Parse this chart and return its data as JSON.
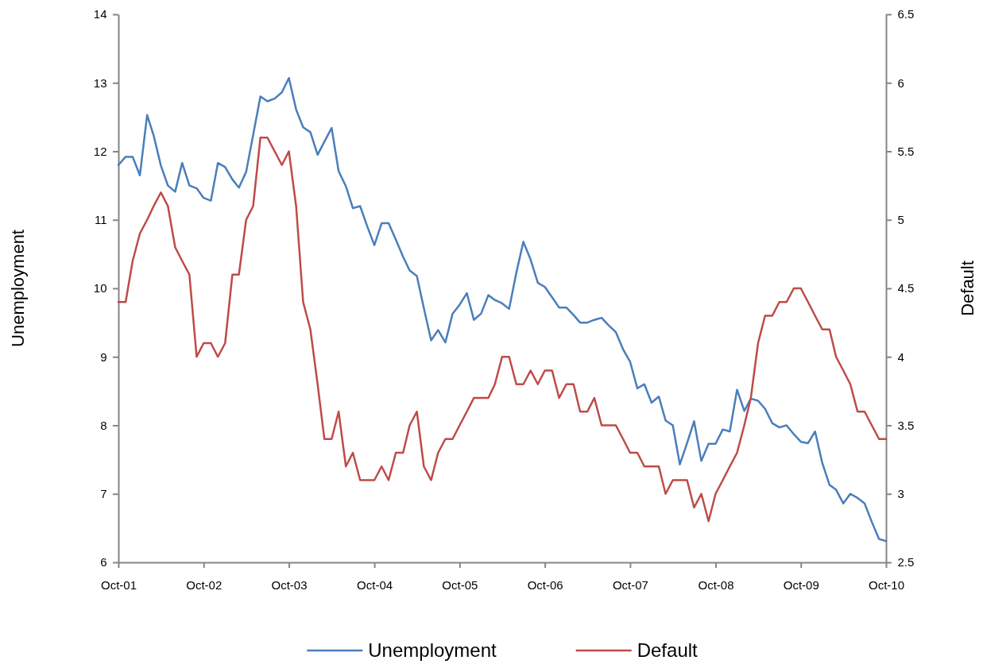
{
  "chart_data": {
    "type": "line",
    "xlabel": null,
    "ylabel": "Unemployment",
    "y2label": "Default",
    "x": [
      "2001-10",
      "2001-11",
      "2001-12",
      "2002-01",
      "2002-02",
      "2002-03",
      "2002-04",
      "2002-05",
      "2002-06",
      "2002-07",
      "2002-08",
      "2002-09",
      "2002-10",
      "2002-11",
      "2002-12",
      "2003-01",
      "2003-02",
      "2003-03",
      "2003-04",
      "2003-05",
      "2003-06",
      "2003-07",
      "2003-08",
      "2003-09",
      "2003-10",
      "2003-11",
      "2003-12",
      "2004-01",
      "2004-02",
      "2004-03",
      "2004-04",
      "2004-05",
      "2004-06",
      "2004-07",
      "2004-08",
      "2004-09",
      "2004-10",
      "2004-11",
      "2004-12",
      "2005-01",
      "2005-02",
      "2005-03",
      "2005-04",
      "2005-05",
      "2005-06",
      "2005-07",
      "2005-08",
      "2005-09",
      "2005-10",
      "2005-11",
      "2005-12",
      "2006-01",
      "2006-02",
      "2006-03",
      "2006-04",
      "2006-05",
      "2006-06",
      "2006-07",
      "2006-08",
      "2006-09",
      "2006-10",
      "2006-11",
      "2006-12",
      "2007-01",
      "2007-02",
      "2007-03",
      "2007-04",
      "2007-05",
      "2007-06",
      "2007-07",
      "2007-08",
      "2007-09",
      "2007-10",
      "2007-11",
      "2007-12",
      "2008-01",
      "2008-02",
      "2008-03",
      "2008-04",
      "2008-05",
      "2008-06",
      "2008-07",
      "2008-08",
      "2008-09",
      "2008-10",
      "2008-11",
      "2008-12",
      "2009-01",
      "2009-02",
      "2009-03",
      "2009-04",
      "2009-05",
      "2009-06",
      "2009-07",
      "2009-08",
      "2009-09",
      "2009-10",
      "2009-11",
      "2009-12",
      "2010-01",
      "2010-02",
      "2010-03",
      "2010-04",
      "2010-05",
      "2010-06",
      "2010-07",
      "2010-08",
      "2010-09",
      "2010-10"
    ],
    "series": [
      {
        "name": "Unemployment",
        "color": "#4a7ebb",
        "values": [
          11.8,
          11.92,
          11.92,
          11.65,
          12.53,
          12.23,
          11.79,
          11.5,
          11.41,
          11.83,
          11.5,
          11.46,
          11.32,
          11.28,
          11.83,
          11.77,
          11.59,
          11.47,
          11.7,
          12.24,
          12.8,
          12.73,
          12.77,
          12.86,
          13.07,
          12.61,
          12.35,
          12.28,
          11.95,
          12.14,
          12.34,
          11.71,
          11.49,
          11.17,
          11.2,
          10.9,
          10.63,
          10.95,
          10.95,
          10.71,
          10.46,
          10.26,
          10.18,
          9.71,
          9.24,
          9.39,
          9.21,
          9.63,
          9.76,
          9.93,
          9.54,
          9.63,
          9.9,
          9.83,
          9.78,
          9.7,
          10.23,
          10.68,
          10.42,
          10.08,
          10.02,
          9.87,
          9.72,
          9.72,
          9.61,
          9.5,
          9.5,
          9.54,
          9.57,
          9.46,
          9.36,
          9.11,
          8.93,
          8.54,
          8.6,
          8.33,
          8.42,
          8.07,
          8.0,
          7.43,
          7.74,
          8.06,
          7.48,
          7.73,
          7.73,
          7.94,
          7.91,
          8.52,
          8.21,
          8.39,
          8.36,
          8.24,
          8.03,
          7.97,
          8.0,
          7.87,
          7.76,
          7.74,
          7.91,
          7.45,
          7.13,
          7.06,
          6.86,
          7.0,
          6.94,
          6.86,
          6.59,
          6.34,
          6.31
        ]
      },
      {
        "name": "Default",
        "color": "#be4b48",
        "axis": "y2",
        "values": [
          4.4,
          4.4,
          4.7,
          4.9,
          5.0,
          5.1,
          5.2,
          5.1,
          4.8,
          4.7,
          4.6,
          4.0,
          4.1,
          4.1,
          4.0,
          4.1,
          4.6,
          4.6,
          5.0,
          5.1,
          5.6,
          5.6,
          5.5,
          5.4,
          5.5,
          5.1,
          4.4,
          4.2,
          3.8,
          3.4,
          3.4,
          3.6,
          3.2,
          3.3,
          3.1,
          3.1,
          3.1,
          3.2,
          3.1,
          3.3,
          3.3,
          3.5,
          3.6,
          3.2,
          3.1,
          3.3,
          3.4,
          3.4,
          3.5,
          3.6,
          3.7,
          3.7,
          3.7,
          3.8,
          4.0,
          4.0,
          3.8,
          3.8,
          3.9,
          3.8,
          3.9,
          3.9,
          3.7,
          3.8,
          3.8,
          3.6,
          3.6,
          3.7,
          3.5,
          3.5,
          3.5,
          3.4,
          3.3,
          3.3,
          3.2,
          3.2,
          3.2,
          3.0,
          3.1,
          3.1,
          3.1,
          2.9,
          3.0,
          2.8,
          3.0,
          3.1,
          3.2,
          3.3,
          3.5,
          3.7,
          4.1,
          4.3,
          4.3,
          4.4,
          4.4,
          4.5,
          4.5,
          4.4,
          4.3,
          4.2,
          4.2,
          4.0,
          3.9,
          3.8,
          3.6,
          3.6,
          3.5,
          3.4,
          3.4
        ]
      }
    ],
    "xlim": [
      "2001-10",
      "2010-10"
    ],
    "xticks": [
      {
        "value": "2001-10",
        "label": "Oct-01"
      },
      {
        "value": "2002-10",
        "label": "Oct-02"
      },
      {
        "value": "2003-10",
        "label": "Oct-03"
      },
      {
        "value": "2004-10",
        "label": "Oct-04"
      },
      {
        "value": "2005-10",
        "label": "Oct-05"
      },
      {
        "value": "2006-10",
        "label": "Oct-06"
      },
      {
        "value": "2007-10",
        "label": "Oct-07"
      },
      {
        "value": "2008-10",
        "label": "Oct-08"
      },
      {
        "value": "2009-10",
        "label": "Oct-09"
      },
      {
        "value": "2010-10",
        "label": "Oct-10"
      }
    ],
    "ylim": [
      6,
      14
    ],
    "yticks": [
      6,
      7,
      8,
      9,
      10,
      11,
      12,
      13,
      14
    ],
    "y2lim": [
      2.5,
      6.5
    ],
    "y2ticks": [
      2.5,
      3,
      3.5,
      4,
      4.5,
      5,
      5.5,
      6,
      6.5
    ],
    "grid": false,
    "legend": "bottom",
    "marker": "none",
    "line_style": "solid"
  }
}
